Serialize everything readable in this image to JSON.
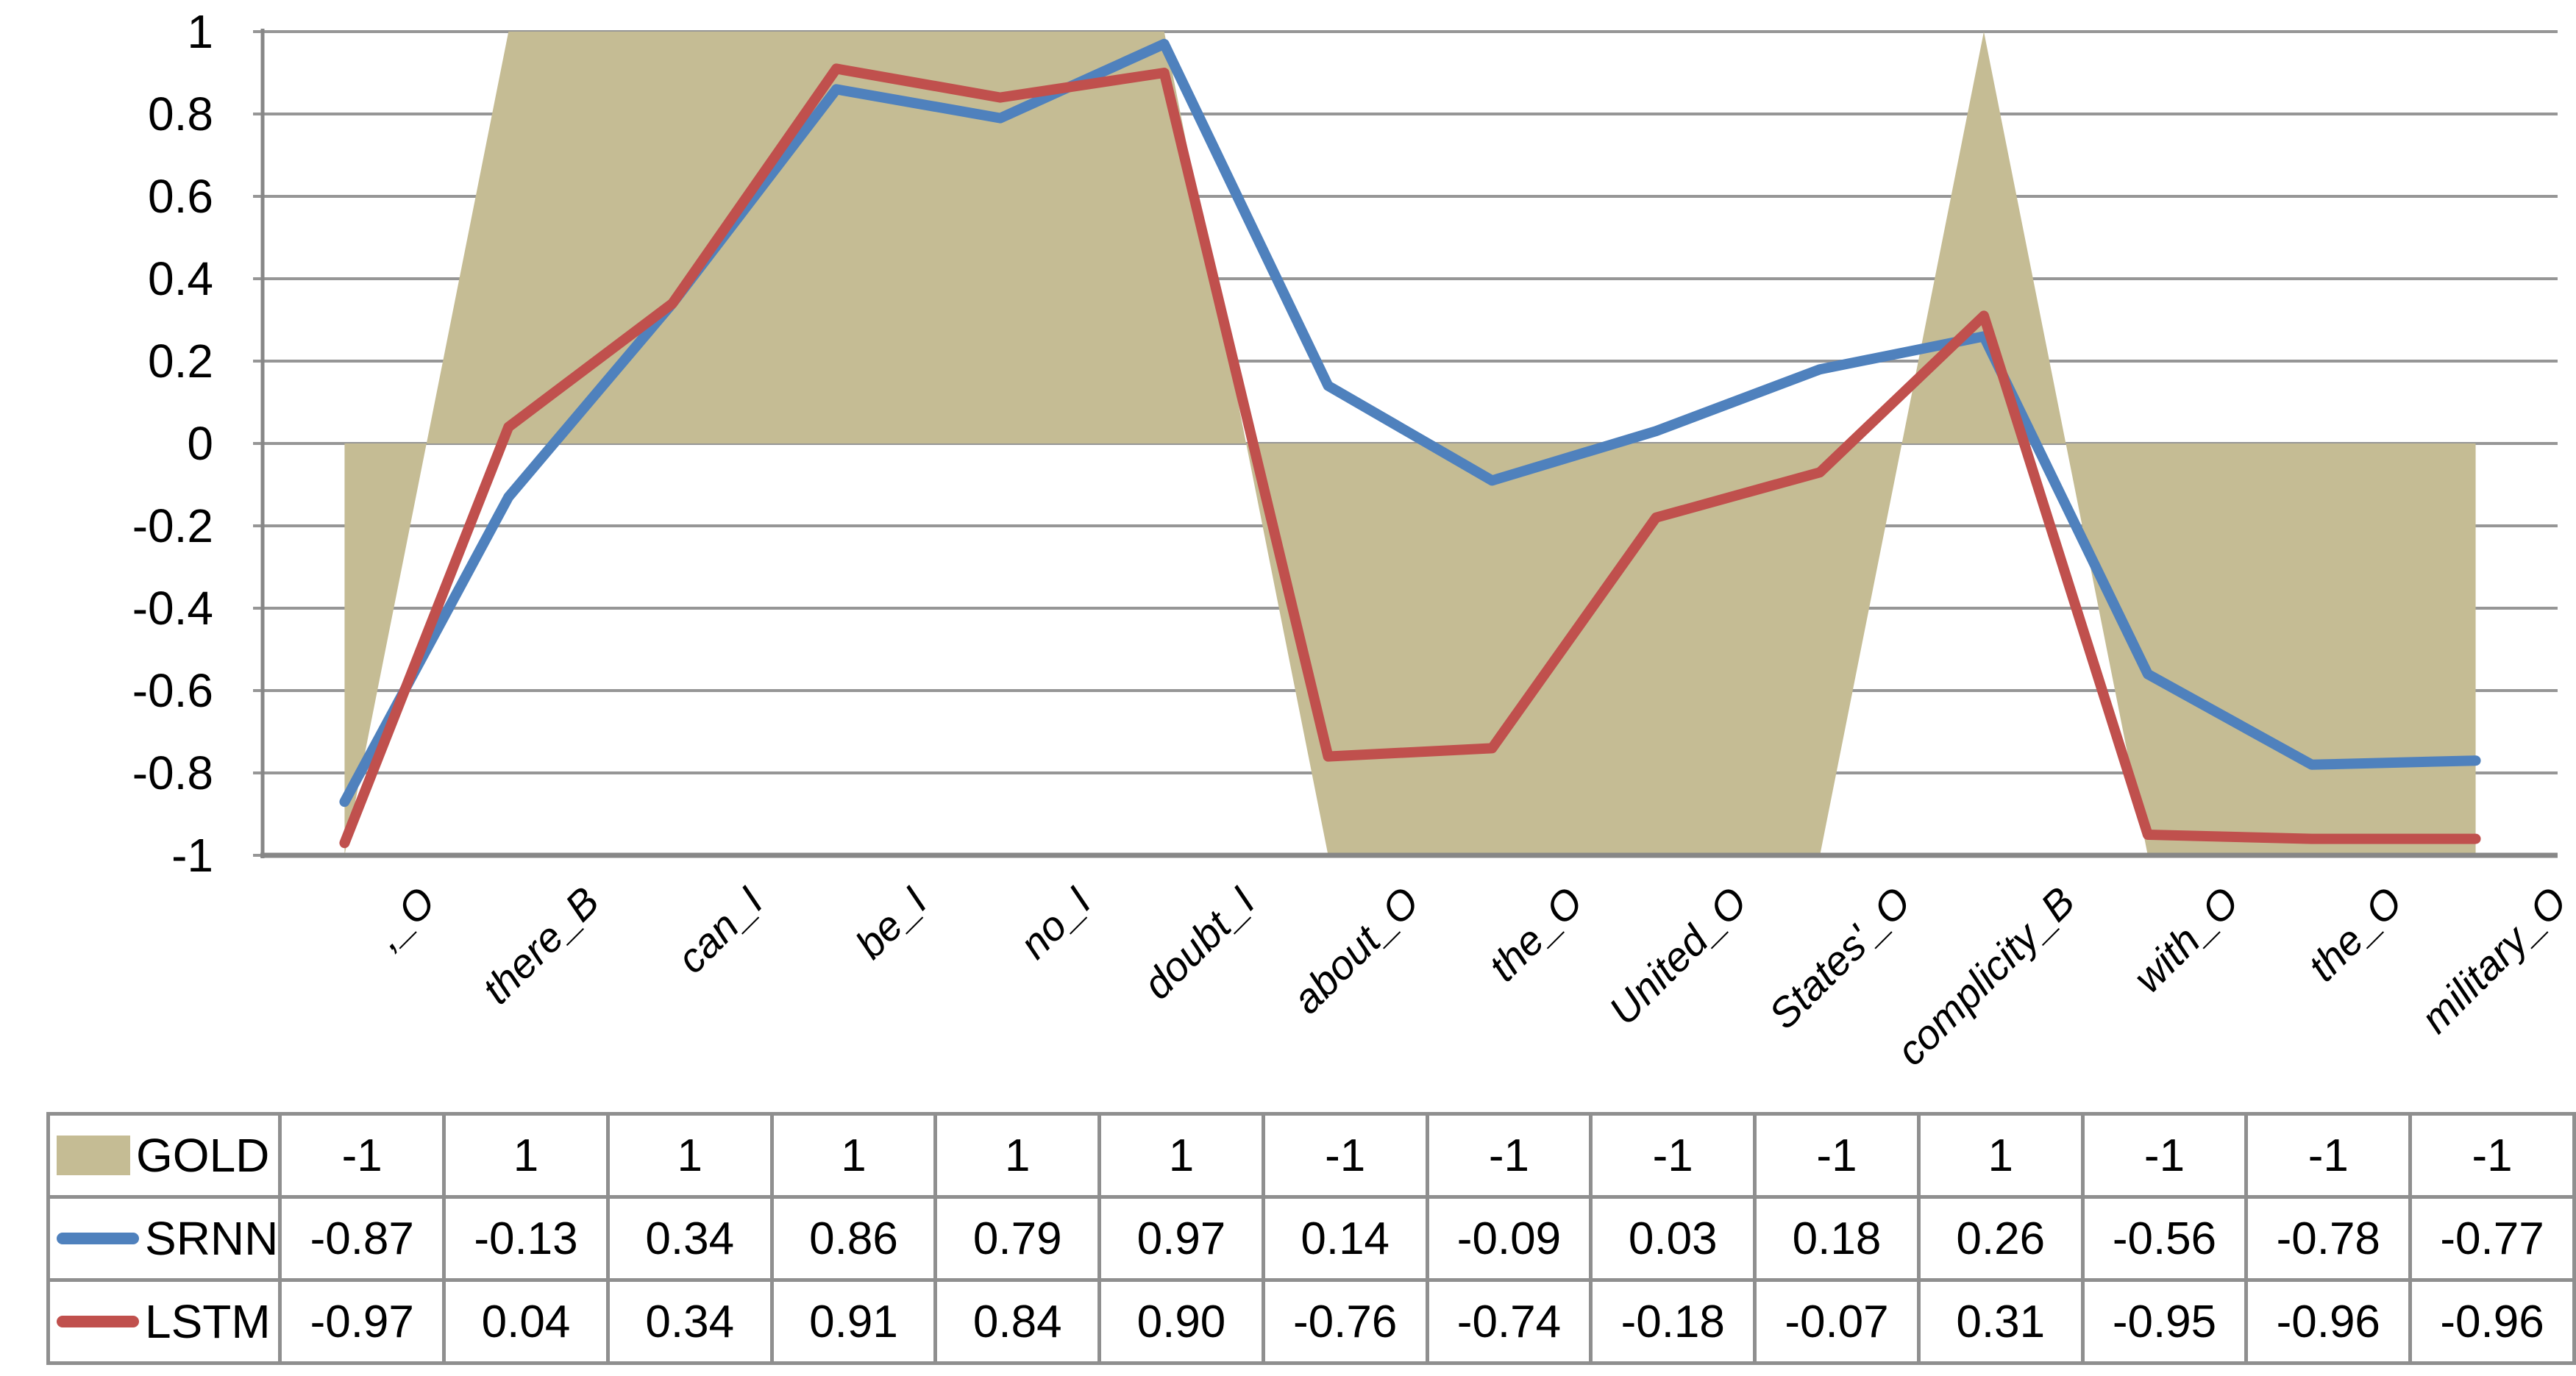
{
  "chart_data": {
    "type": "area+line",
    "title": "",
    "xlabel": "",
    "ylabel": "",
    "categories": [
      ",_O",
      "there_B",
      "can_I",
      "be_I",
      "no_I",
      "doubt_I",
      "about_O",
      "the_O",
      "United_O",
      "States'_O",
      "complicity_B",
      "with_O",
      "the_O",
      "military_O"
    ],
    "ylim": [
      -1,
      1
    ],
    "ytick_step": 0.2,
    "ytick_labels": [
      "1",
      "0.8",
      "0.6",
      "0.4",
      "0.2",
      "0",
      "-0.2",
      "-0.4",
      "-0.6",
      "-0.8",
      "-1"
    ],
    "grid": true,
    "legend_position": "table-left-column",
    "series": [
      {
        "name": "GOLD",
        "type": "area",
        "color": "#C5BC94",
        "values": [
          -1,
          1,
          1,
          1,
          1,
          1,
          -1,
          -1,
          -1,
          -1,
          1,
          -1,
          -1,
          -1
        ],
        "display": [
          "-1",
          "1",
          "1",
          "1",
          "1",
          "1",
          "-1",
          "-1",
          "-1",
          "-1",
          "1",
          "-1",
          "-1",
          "-1"
        ]
      },
      {
        "name": "SRNN",
        "type": "line",
        "color": "#4F81BD",
        "values": [
          -0.87,
          -0.13,
          0.34,
          0.86,
          0.79,
          0.97,
          0.14,
          -0.09,
          0.03,
          0.18,
          0.26,
          -0.56,
          -0.78,
          -0.77
        ],
        "display": [
          "-0.87",
          "-0.13",
          "0.34",
          "0.86",
          "0.79",
          "0.97",
          "0.14",
          "-0.09",
          "0.03",
          "0.18",
          "0.26",
          "-0.56",
          "-0.78",
          "-0.77"
        ]
      },
      {
        "name": "LSTM",
        "type": "line",
        "color": "#C0504D",
        "values": [
          -0.97,
          0.04,
          0.34,
          0.91,
          0.84,
          0.9,
          -0.76,
          -0.74,
          -0.18,
          -0.07,
          0.31,
          -0.95,
          -0.96,
          -0.96
        ],
        "display": [
          "-0.97",
          "0.04",
          "0.34",
          "0.91",
          "0.84",
          "0.90",
          "-0.76",
          "-0.74",
          "-0.18",
          "-0.07",
          "0.31",
          "-0.95",
          "-0.96",
          "-0.96"
        ]
      }
    ]
  },
  "colors": {
    "gridline": "#969696",
    "axis": "#878787",
    "table_border": "#8f8f8f",
    "text": "#000000",
    "background": "#ffffff"
  }
}
